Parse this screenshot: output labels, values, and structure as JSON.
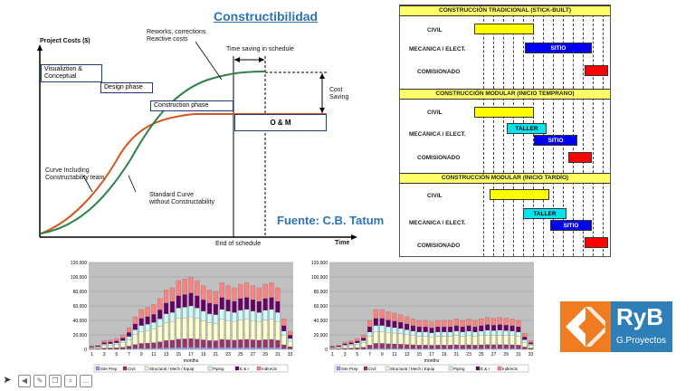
{
  "curve_panel": {
    "title": "Constructibilidad",
    "y_axis_label": "Project Costs ($)",
    "x_axis_label": "Time",
    "end_label": "End of schedule",
    "rework_label": "Reworks, corrections\nReactive costs",
    "time_saving_label": "Time saving in schedule",
    "cost_saving_label": "Cost\nSaving",
    "curve_team_label": "Curve Including\nConstructability team",
    "standard_curve_label": "Standard Curve\nwithout Constructability",
    "phases": [
      "Visualiztion &\nConceptual",
      "Design phase",
      "Construction phase"
    ],
    "om_label": "O & M",
    "source": "Fuente: C.B. Tatum",
    "colors": {
      "orange_curve": "#d4551e",
      "green_curve": "#2f7f4a",
      "title": "#2e74b5"
    }
  },
  "gantt": {
    "sections": [
      {
        "title": "CONSTRUCCIÓN TRADICIONAL (STICK-BUILT)",
        "rows": [
          {
            "label": "CIVIL",
            "bars": [
              {
                "text": "",
                "color": "#ffff00"
              }
            ]
          },
          {
            "label": "MECANICA / ELECT.",
            "bars": [
              {
                "text": "SITIO",
                "color": "#0000ee"
              }
            ]
          },
          {
            "label": "COMISIONADO",
            "bars": [
              {
                "text": "",
                "color": "#ff0000"
              }
            ]
          }
        ]
      },
      {
        "title": "CONSTRUCCIÓN MODULAR (INICIO TEMPRANO)",
        "rows": [
          {
            "label": "CIVIL",
            "bars": [
              {
                "text": "",
                "color": "#ffff00"
              }
            ]
          },
          {
            "label": "MECANICA / ELECT.",
            "bars": [
              {
                "text": "TALLER",
                "color": "#00e5ee"
              },
              {
                "text": "SITIO",
                "color": "#0000ee"
              }
            ]
          },
          {
            "label": "COMISIONADO",
            "bars": [
              {
                "text": "",
                "color": "#ff0000"
              }
            ]
          }
        ]
      },
      {
        "title": "CONSTRUCCIÓN MODULAR (INICIO TARDÍO)",
        "rows": [
          {
            "label": "CIVIL",
            "bars": [
              {
                "text": "",
                "color": "#ffff00"
              }
            ]
          },
          {
            "label": "MECANICA / ELECT.",
            "bars": [
              {
                "text": "TALLER",
                "color": "#00e5ee"
              },
              {
                "text": "SITIO",
                "color": "#0000ee"
              }
            ]
          },
          {
            "label": "COMISIONADO",
            "bars": [
              {
                "text": "",
                "color": "#ff0000"
              }
            ]
          }
        ]
      }
    ]
  },
  "chart_data": [
    {
      "type": "bar",
      "stacked": true,
      "xlabel": "months",
      "ylim": [
        0,
        120000
      ],
      "yticks": [
        "0",
        "20,000",
        "40,000",
        "60,000",
        "80,000",
        "100,000",
        "120,000"
      ],
      "xticks": [
        "1",
        "3",
        "5",
        "7",
        "9",
        "11",
        "13",
        "15",
        "17",
        "19",
        "21",
        "23",
        "25",
        "27",
        "29",
        "31",
        "33"
      ],
      "legend": [
        "Site Prep",
        "Civil",
        "Structural / Mech / Equip",
        "Piping",
        "E & I",
        "Indirects"
      ],
      "colors": [
        "#9999ff",
        "#993366",
        "#ffffcc",
        "#ccffff",
        "#660066",
        "#ff8080"
      ],
      "categories": [
        1,
        2,
        3,
        4,
        5,
        6,
        7,
        8,
        9,
        10,
        11,
        12,
        13,
        14,
        15,
        16,
        17,
        18,
        19,
        20,
        21,
        22,
        23,
        24,
        25,
        26,
        27,
        28,
        29,
        30,
        31,
        32,
        33
      ],
      "totals": [
        5000,
        6000,
        12000,
        13000,
        15000,
        20000,
        30000,
        45000,
        55000,
        58000,
        62000,
        70000,
        82000,
        85000,
        95000,
        97000,
        100000,
        95000,
        88000,
        82000,
        80000,
        92000,
        88000,
        85000,
        90000,
        92000,
        88000,
        85000,
        90000,
        92000,
        85000,
        42000,
        25000
      ]
    },
    {
      "type": "bar",
      "stacked": true,
      "xlabel": "months",
      "ylim": [
        0,
        120000
      ],
      "yticks": [
        "0",
        "20,000",
        "40,000",
        "60,000",
        "80,000",
        "100,000",
        "120,000"
      ],
      "xticks": [
        "1",
        "3",
        "5",
        "7",
        "9",
        "11",
        "13",
        "15",
        "17",
        "19",
        "21",
        "23",
        "25",
        "27",
        "29",
        "31",
        "33"
      ],
      "legend": [
        "Site Prep",
        "Civil",
        "Structural / Mech / Equip",
        "Piping",
        "E & I",
        "Indirects"
      ],
      "colors": [
        "#9999ff",
        "#993366",
        "#ffffcc",
        "#ccffff",
        "#660066",
        "#ff8080"
      ],
      "categories": [
        1,
        2,
        3,
        4,
        5,
        6,
        7,
        8,
        9,
        10,
        11,
        12,
        13,
        14,
        15,
        16,
        17,
        18,
        19,
        20,
        21,
        22,
        23,
        24,
        25,
        26,
        27,
        28,
        29,
        30,
        31,
        32,
        33
      ],
      "totals": [
        5000,
        6000,
        10000,
        12000,
        15000,
        20000,
        40000,
        55000,
        55000,
        52000,
        50000,
        48000,
        45000,
        42000,
        40000,
        40000,
        38000,
        40000,
        40000,
        40000,
        42000,
        40000,
        42000,
        40000,
        42000,
        44000,
        43000,
        44000,
        43000,
        42000,
        40000,
        22000,
        12000
      ]
    }
  ],
  "logo": {
    "brand": "RyB",
    "sub": "G.Proyectos",
    "color": "#2e7fb8",
    "accent": "#f07c22"
  },
  "toolbar": {
    "icons": [
      "cursor-icon",
      "back-icon",
      "pen-icon",
      "copy-icon",
      "zoom-icon",
      "more-icon"
    ]
  }
}
